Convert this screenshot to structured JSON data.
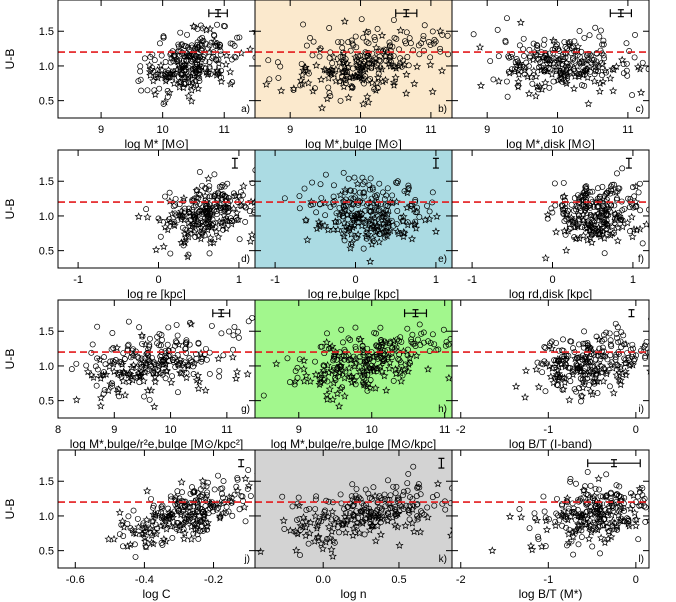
{
  "figure": {
    "ylabel": "U-B"
  },
  "chart_data": [
    {
      "id": "a",
      "type": "scatter",
      "panel_label": "a)",
      "xlabel": "log M* [M⊙]",
      "bg": "#ffffff",
      "xlim": [
        8.3,
        11.5
      ],
      "xticks": [
        "9",
        "10",
        "11"
      ],
      "xtick_values": [
        9,
        10,
        11
      ],
      "xnotick": false,
      "ylim": [
        0.25,
        1.95
      ],
      "yticks": [
        "0.5",
        "1.0",
        "1.5"
      ],
      "ytick_values": [
        0.5,
        1.0,
        1.5
      ],
      "ref_line": 1.2,
      "errbar": {
        "x": 10.9,
        "y": 1.76,
        "xerr": 0.15,
        "yerr": 0.05
      },
      "cloud": {
        "cx": 10.45,
        "cy": 1.05,
        "sx": 0.4,
        "sy": 0.22,
        "r": 0.35,
        "n": 260
      }
    },
    {
      "id": "b",
      "type": "scatter",
      "panel_label": "b)",
      "xlabel": "log M*,bulge [M⊙]",
      "bg": "#fbe9cd",
      "xlim": [
        8.5,
        11.3
      ],
      "xticks": [
        "9",
        "10",
        "11"
      ],
      "xtick_values": [
        9,
        10,
        11
      ],
      "xnotick": false,
      "ylim": [
        0.25,
        1.95
      ],
      "yticks": [
        "0.5",
        "1.0",
        "1.5"
      ],
      "ytick_values": [
        0.5,
        1.0,
        1.5
      ],
      "ref_line": 1.2,
      "errbar": {
        "x": 10.65,
        "y": 1.76,
        "xerr": 0.15,
        "yerr": 0.05
      },
      "cloud": {
        "cx": 10.0,
        "cy": 1.05,
        "sx": 0.55,
        "sy": 0.24,
        "r": 0.3,
        "n": 260
      }
    },
    {
      "id": "c",
      "type": "scatter",
      "panel_label": "c)",
      "xlabel": "log M*,disk [M⊙]",
      "bg": "#ffffff",
      "xlim": [
        8.5,
        11.3
      ],
      "xticks": [
        "9",
        "10",
        "11"
      ],
      "xtick_values": [
        9,
        10,
        11
      ],
      "xnotick": false,
      "ylim": [
        0.25,
        1.95
      ],
      "yticks": [
        "0.5",
        "1.0",
        "1.5"
      ],
      "ytick_values": [
        0.5,
        1.0,
        1.5
      ],
      "ref_line": 1.2,
      "errbar": {
        "x": 10.9,
        "y": 1.76,
        "xerr": 0.15,
        "yerr": 0.05
      },
      "cloud": {
        "cx": 10.1,
        "cy": 1.05,
        "sx": 0.5,
        "sy": 0.22,
        "r": -0.1,
        "n": 260
      }
    },
    {
      "id": "d",
      "type": "scatter",
      "panel_label": "d)",
      "xlabel": "log re [kpc]",
      "bg": "#ffffff",
      "xlim": [
        -1.25,
        1.2
      ],
      "xticks": [
        "-1",
        "0",
        "1"
      ],
      "xtick_values": [
        -1,
        0,
        1
      ],
      "xnotick": false,
      "ylim": [
        0.25,
        1.95
      ],
      "yticks": [
        "0.5",
        "1.0",
        "1.5"
      ],
      "ytick_values": [
        0.5,
        1.0,
        1.5
      ],
      "ref_line": 1.2,
      "errbar": {
        "x": 0.95,
        "y": 1.76,
        "xerr": 0.0,
        "yerr": 0.07
      },
      "cloud": {
        "cx": 0.6,
        "cy": 1.05,
        "sx": 0.3,
        "sy": 0.22,
        "r": 0.25,
        "n": 260
      }
    },
    {
      "id": "e",
      "type": "scatter",
      "panel_label": "e)",
      "xlabel": "log re,bulge [kpc]",
      "bg": "#abdbe3",
      "xlim": [
        -1.25,
        1.2
      ],
      "xticks": [
        "-1",
        "0",
        "1"
      ],
      "xtick_values": [
        -1,
        0,
        1
      ],
      "xnotick": false,
      "ylim": [
        0.25,
        1.95
      ],
      "yticks": [
        "0.5",
        "1.0",
        "1.5"
      ],
      "ytick_values": [
        0.5,
        1.0,
        1.5
      ],
      "ref_line": 1.2,
      "errbar": {
        "x": 1.0,
        "y": 1.76,
        "xerr": 0.0,
        "yerr": 0.07
      },
      "cloud": {
        "cx": 0.15,
        "cy": 1.05,
        "sx": 0.35,
        "sy": 0.23,
        "r": 0.0,
        "n": 260
      }
    },
    {
      "id": "f",
      "type": "scatter",
      "panel_label": "f)",
      "xlabel": "log rd,disk [kpc]",
      "bg": "#ffffff",
      "xlim": [
        -1.25,
        1.2
      ],
      "xticks": [
        "-1",
        "0",
        "1"
      ],
      "xtick_values": [
        -1,
        0,
        1
      ],
      "xnotick": false,
      "ylim": [
        0.25,
        1.95
      ],
      "yticks": [
        "0.5",
        "1.0",
        "1.5"
      ],
      "ytick_values": [
        0.5,
        1.0,
        1.5
      ],
      "ref_line": 1.2,
      "errbar": {
        "x": 0.95,
        "y": 1.76,
        "xerr": 0.0,
        "yerr": 0.07
      },
      "cloud": {
        "cx": 0.55,
        "cy": 1.05,
        "sx": 0.28,
        "sy": 0.22,
        "r": 0.1,
        "n": 260
      }
    },
    {
      "id": "g",
      "type": "scatter",
      "panel_label": "g)",
      "xlabel": "log M*,bulge/r²e,bulge [M⊙/kpc²]",
      "bg": "#ffffff",
      "xlim": [
        8.0,
        11.5
      ],
      "xticks": [
        "8",
        "9",
        "10",
        "11"
      ],
      "xtick_values": [
        8,
        9,
        10,
        11
      ],
      "xnotick": false,
      "ylim": [
        0.25,
        1.95
      ],
      "yticks": [
        "0.5",
        "1.0",
        "1.5"
      ],
      "ytick_values": [
        0.5,
        1.0,
        1.5
      ],
      "ref_line": 1.2,
      "errbar": {
        "x": 10.9,
        "y": 1.76,
        "xerr": 0.15,
        "yerr": 0.05
      },
      "cloud": {
        "cx": 9.8,
        "cy": 1.05,
        "sx": 0.7,
        "sy": 0.23,
        "r": 0.35,
        "n": 260
      }
    },
    {
      "id": "h",
      "type": "scatter",
      "panel_label": "h)",
      "xlabel": "log M*,bulge/re,bulge [M⊙/kpc]",
      "bg": "#a2f78d",
      "xlim": [
        8.4,
        11.1
      ],
      "xticks": [
        "9",
        "10",
        "11"
      ],
      "xtick_values": [
        9,
        10,
        11
      ],
      "xnotick": false,
      "ylim": [
        0.25,
        1.95
      ],
      "yticks": [
        "0.5",
        "1.0",
        "1.5"
      ],
      "ytick_values": [
        0.5,
        1.0,
        1.5
      ],
      "ref_line": 1.2,
      "errbar": {
        "x": 10.6,
        "y": 1.76,
        "xerr": 0.15,
        "yerr": 0.05
      },
      "cloud": {
        "cx": 9.9,
        "cy": 1.05,
        "sx": 0.5,
        "sy": 0.23,
        "r": 0.45,
        "n": 260
      }
    },
    {
      "id": "i",
      "type": "scatter",
      "panel_label": "i)",
      "xlabel": "log B/T (I-band)",
      "bg": "#ffffff",
      "xlim": [
        -2.1,
        0.15
      ],
      "xticks": [
        "-2",
        "-1",
        "0"
      ],
      "xtick_values": [
        -2,
        -1,
        0
      ],
      "xnotick": false,
      "ylim": [
        0.25,
        1.95
      ],
      "yticks": [
        "0.5",
        "1.0",
        "1.5"
      ],
      "ytick_values": [
        0.5,
        1.0,
        1.5
      ],
      "ref_line": 1.2,
      "errbar": {
        "x": -0.05,
        "y": 1.76,
        "xerr": 0.0,
        "yerr": 0.05
      },
      "cloud": {
        "cx": -0.5,
        "cy": 1.05,
        "sx": 0.35,
        "sy": 0.22,
        "r": 0.3,
        "n": 260
      }
    },
    {
      "id": "j",
      "type": "scatter",
      "panel_label": "j)",
      "xlabel": "log C",
      "bg": "#ffffff",
      "xlim": [
        -0.65,
        -0.08
      ],
      "xticks": [
        "-0.6",
        "-0.4",
        "-0.2"
      ],
      "xtick_values": [
        -0.6,
        -0.4,
        -0.2
      ],
      "xnotick": false,
      "ylim": [
        0.25,
        1.95
      ],
      "yticks": [
        "0.5",
        "1.0",
        "1.5"
      ],
      "ytick_values": [
        0.5,
        1.0,
        1.5
      ],
      "ref_line": 1.2,
      "errbar": {
        "x": -0.12,
        "y": 1.76,
        "xerr": 0.0,
        "yerr": 0.05
      },
      "cloud": {
        "cx": -0.28,
        "cy": 1.05,
        "sx": 0.09,
        "sy": 0.22,
        "r": 0.55,
        "n": 260
      }
    },
    {
      "id": "k",
      "type": "scatter",
      "panel_label": "k)",
      "xlabel": "log n",
      "bg": "#d3d3d3",
      "xlim": [
        -0.45,
        0.85
      ],
      "xticks": [
        "0.0",
        "0.5"
      ],
      "xtick_values": [
        0.0,
        0.5
      ],
      "xnotick": false,
      "ylim": [
        0.25,
        1.95
      ],
      "yticks": [
        "0.5",
        "1.0",
        "1.5"
      ],
      "ytick_values": [
        0.5,
        1.0,
        1.5
      ],
      "ref_line": 1.2,
      "errbar": {
        "x": 0.78,
        "y": 1.76,
        "xerr": 0.0,
        "yerr": 0.07
      },
      "cloud": {
        "cx": 0.3,
        "cy": 1.05,
        "sx": 0.3,
        "sy": 0.22,
        "r": 0.4,
        "n": 260
      }
    },
    {
      "id": "l",
      "type": "scatter",
      "panel_label": "l)",
      "xlabel": "log B/T (M*)",
      "bg": "#ffffff",
      "xlim": [
        -2.1,
        0.15
      ],
      "xticks": [
        "-2",
        "-1",
        "0"
      ],
      "xtick_values": [
        -2,
        -1,
        0
      ],
      "xnotick": false,
      "ylim": [
        0.25,
        1.95
      ],
      "yticks": [
        "0.5",
        "1.0",
        "1.5"
      ],
      "ytick_values": [
        0.5,
        1.0,
        1.5
      ],
      "ref_line": 1.2,
      "errbar": {
        "x": -0.25,
        "y": 1.76,
        "xerr": 0.3,
        "yerr": 0.05
      },
      "cloud": {
        "cx": -0.45,
        "cy": 1.05,
        "sx": 0.35,
        "sy": 0.22,
        "r": 0.25,
        "n": 260
      }
    }
  ]
}
